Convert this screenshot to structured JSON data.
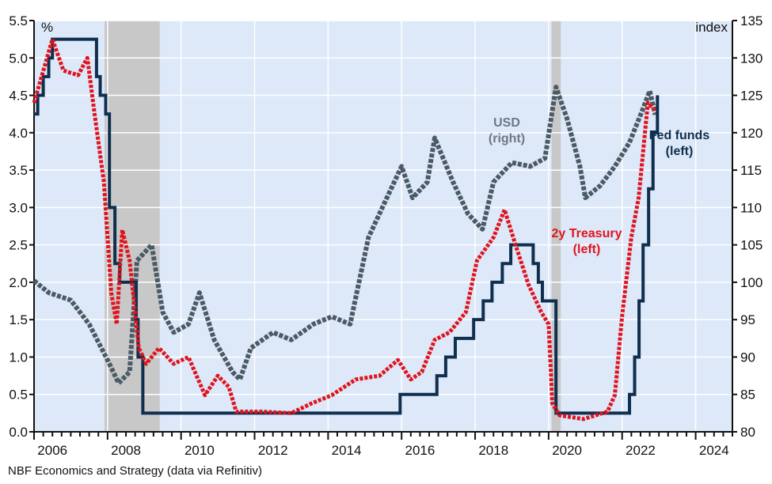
{
  "chart_data": {
    "type": "line",
    "left_unit": "%",
    "right_unit": "index",
    "xlim": [
      2006.0,
      2025.0
    ],
    "ylim_left": [
      0,
      5.5
    ],
    "ylim_right": [
      80,
      135
    ],
    "x_ticks": [
      "2006",
      "2008",
      "2010",
      "2012",
      "2014",
      "2016",
      "2018",
      "2020",
      "2022",
      "2024"
    ],
    "y_ticks_left": [
      "0.0",
      "0.5",
      "1.0",
      "1.5",
      "2.0",
      "2.5",
      "3.0",
      "3.5",
      "4.0",
      "4.5",
      "5.0",
      "5.5"
    ],
    "y_ticks_right": [
      "80",
      "85",
      "90",
      "95",
      "100",
      "105",
      "110",
      "115",
      "120",
      "125",
      "130",
      "135"
    ],
    "grid": true,
    "recessions": [
      [
        2007.92,
        2009.42
      ],
      [
        2020.08,
        2020.33
      ]
    ],
    "colors": {
      "background": "#dde8f9",
      "recession": "#c8c8c8",
      "usd": "#4b5b66",
      "treasury": "#e0141e",
      "fedfunds": "#0f2f4f"
    },
    "series": [
      {
        "name": "USD (right)",
        "label_lines": [
          "USD",
          "(right)"
        ],
        "axis": "right",
        "style": "dashed",
        "points": [
          [
            2006.0,
            100.2
          ],
          [
            2006.4,
            98.6
          ],
          [
            2007.0,
            97.6
          ],
          [
            2007.5,
            94.4
          ],
          [
            2008.0,
            89.6
          ],
          [
            2008.3,
            86.5
          ],
          [
            2008.6,
            88
          ],
          [
            2008.8,
            102.9
          ],
          [
            2009.2,
            105
          ],
          [
            2009.5,
            96
          ],
          [
            2009.8,
            93.3
          ],
          [
            2010.2,
            94.4
          ],
          [
            2010.5,
            98.6
          ],
          [
            2010.9,
            92.3
          ],
          [
            2011.4,
            88
          ],
          [
            2011.6,
            87
          ],
          [
            2011.9,
            91.2
          ],
          [
            2012.5,
            93.3
          ],
          [
            2013.0,
            92.3
          ],
          [
            2013.6,
            94.4
          ],
          [
            2014.1,
            95.4
          ],
          [
            2014.6,
            94.4
          ],
          [
            2015.1,
            106
          ],
          [
            2015.6,
            111.3
          ],
          [
            2016.0,
            115.5
          ],
          [
            2016.3,
            111.3
          ],
          [
            2016.7,
            113.4
          ],
          [
            2016.9,
            119.3
          ],
          [
            2017.4,
            113.4
          ],
          [
            2017.8,
            109.2
          ],
          [
            2018.2,
            107.1
          ],
          [
            2018.5,
            113.4
          ],
          [
            2019.0,
            116
          ],
          [
            2019.5,
            115.5
          ],
          [
            2019.9,
            116.6
          ],
          [
            2020.2,
            126.1
          ],
          [
            2020.5,
            121.9
          ],
          [
            2020.85,
            115.5
          ],
          [
            2021.0,
            111.3
          ],
          [
            2021.4,
            112.9
          ],
          [
            2021.8,
            115.5
          ],
          [
            2022.2,
            118.7
          ],
          [
            2022.55,
            123
          ],
          [
            2022.75,
            125.6
          ],
          [
            2022.9,
            122.4
          ]
        ]
      },
      {
        "name": "2y Treasury (left)",
        "label_lines": [
          "2y Treasury",
          "(left)"
        ],
        "axis": "left",
        "style": "dashed",
        "points": [
          [
            2006.0,
            4.4
          ],
          [
            2006.5,
            5.25
          ],
          [
            2006.8,
            4.83
          ],
          [
            2007.2,
            4.77
          ],
          [
            2007.45,
            5.0
          ],
          [
            2007.65,
            4.24
          ],
          [
            2007.9,
            3.34
          ],
          [
            2008.1,
            1.86
          ],
          [
            2008.25,
            1.44
          ],
          [
            2008.4,
            2.7
          ],
          [
            2008.6,
            2.29
          ],
          [
            2008.85,
            1.12
          ],
          [
            2009.05,
            0.91
          ],
          [
            2009.4,
            1.12
          ],
          [
            2009.8,
            0.91
          ],
          [
            2010.2,
            1.0
          ],
          [
            2010.65,
            0.49
          ],
          [
            2011.0,
            0.75
          ],
          [
            2011.3,
            0.6
          ],
          [
            2011.5,
            0.27
          ],
          [
            2012.2,
            0.27
          ],
          [
            2013.0,
            0.25
          ],
          [
            2013.55,
            0.38
          ],
          [
            2014.1,
            0.49
          ],
          [
            2014.75,
            0.7
          ],
          [
            2015.4,
            0.75
          ],
          [
            2015.9,
            0.96
          ],
          [
            2016.25,
            0.7
          ],
          [
            2016.55,
            0.8
          ],
          [
            2016.9,
            1.23
          ],
          [
            2017.3,
            1.33
          ],
          [
            2017.75,
            1.6
          ],
          [
            2018.05,
            2.29
          ],
          [
            2018.5,
            2.6
          ],
          [
            2018.8,
            2.97
          ],
          [
            2019.1,
            2.5
          ],
          [
            2019.45,
            1.97
          ],
          [
            2019.8,
            1.6
          ],
          [
            2020.0,
            1.44
          ],
          [
            2020.1,
            0.38
          ],
          [
            2020.3,
            0.22
          ],
          [
            2020.95,
            0.17
          ],
          [
            2021.6,
            0.27
          ],
          [
            2021.8,
            0.49
          ],
          [
            2022.0,
            1.55
          ],
          [
            2022.25,
            2.6
          ],
          [
            2022.45,
            3.13
          ],
          [
            2022.7,
            4.4
          ],
          [
            2022.9,
            4.3
          ]
        ]
      },
      {
        "name": "Fed funds (left)",
        "label_lines": [
          "Fed funds",
          "(left)"
        ],
        "axis": "left",
        "style": "step",
        "points": [
          [
            2006.0,
            4.25
          ],
          [
            2006.1,
            4.5
          ],
          [
            2006.25,
            4.75
          ],
          [
            2006.4,
            5.0
          ],
          [
            2006.5,
            5.25
          ],
          [
            2007.7,
            4.75
          ],
          [
            2007.8,
            4.5
          ],
          [
            2007.95,
            4.25
          ],
          [
            2008.05,
            3.0
          ],
          [
            2008.2,
            2.25
          ],
          [
            2008.33,
            2.0
          ],
          [
            2008.78,
            1.5
          ],
          [
            2008.83,
            1.0
          ],
          [
            2008.96,
            0.25
          ],
          [
            2015.96,
            0.5
          ],
          [
            2016.96,
            0.75
          ],
          [
            2017.2,
            1.0
          ],
          [
            2017.46,
            1.25
          ],
          [
            2017.96,
            1.5
          ],
          [
            2018.22,
            1.75
          ],
          [
            2018.46,
            2.0
          ],
          [
            2018.74,
            2.25
          ],
          [
            2018.97,
            2.5
          ],
          [
            2019.58,
            2.25
          ],
          [
            2019.72,
            2.0
          ],
          [
            2019.83,
            1.75
          ],
          [
            2020.2,
            0.25
          ],
          [
            2022.2,
            0.5
          ],
          [
            2022.34,
            1.0
          ],
          [
            2022.46,
            1.75
          ],
          [
            2022.57,
            2.5
          ],
          [
            2022.72,
            3.25
          ],
          [
            2022.84,
            4.0
          ],
          [
            2022.96,
            4.5
          ]
        ]
      }
    ]
  },
  "source": "NBF Economics and Strategy (data via Refinitiv)"
}
